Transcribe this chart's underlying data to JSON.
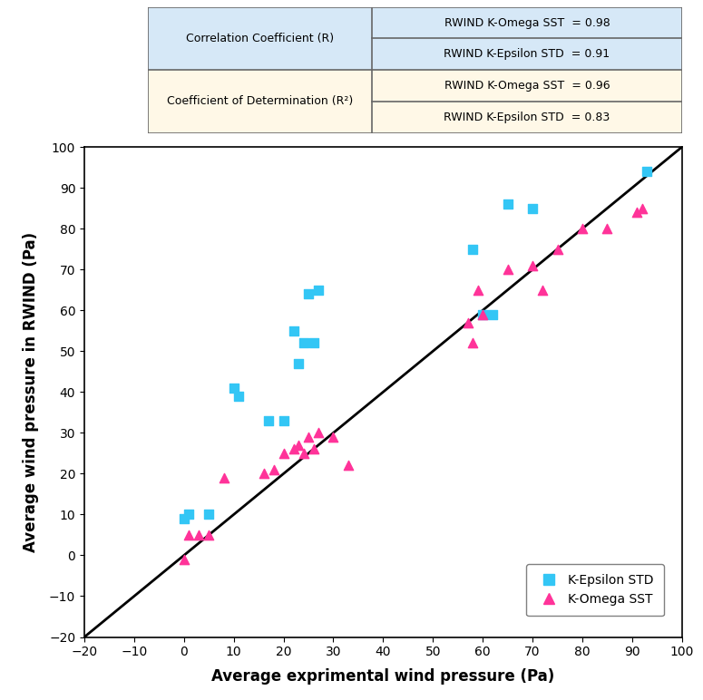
{
  "k_epsilon_x": [
    0,
    1,
    5,
    10,
    11,
    17,
    20,
    22,
    23,
    24,
    25,
    26,
    27,
    58,
    60,
    62,
    65,
    70,
    93
  ],
  "k_epsilon_y": [
    9,
    10,
    10,
    41,
    39,
    33,
    33,
    55,
    47,
    52,
    64,
    52,
    65,
    75,
    59,
    59,
    86,
    85,
    94
  ],
  "k_omega_x": [
    0,
    1,
    3,
    5,
    8,
    16,
    18,
    20,
    22,
    23,
    24,
    25,
    26,
    27,
    30,
    33,
    57,
    58,
    59,
    60,
    65,
    70,
    72,
    75,
    80,
    85,
    91,
    92
  ],
  "k_omega_y": [
    -1,
    5,
    5,
    5,
    19,
    20,
    21,
    25,
    26,
    27,
    25,
    29,
    26,
    30,
    29,
    22,
    57,
    52,
    65,
    59,
    70,
    71,
    65,
    75,
    80,
    80,
    84,
    85
  ],
  "line_x": [
    -20,
    100
  ],
  "line_y": [
    -20,
    100
  ],
  "xlim": [
    -20,
    100
  ],
  "ylim": [
    -20,
    100
  ],
  "xticks": [
    -20,
    -10,
    0,
    10,
    20,
    30,
    40,
    50,
    60,
    70,
    80,
    90,
    100
  ],
  "yticks": [
    -20,
    -10,
    0,
    10,
    20,
    30,
    40,
    50,
    60,
    70,
    80,
    90,
    100
  ],
  "xlabel": "Average exprimental wind pressure (Pa)",
  "ylabel": "Average wind pressure in RWIND (Pa)",
  "k_epsilon_color": "#33C6F5",
  "k_omega_color": "#FF3399",
  "table_border_color": "#666666",
  "table_left_bg_top": "#D6E8F7",
  "table_left_bg_bot": "#FFF8E7",
  "table_right_bg_top": "#D6E8F7",
  "table_right_bg_bot": "#FFF8E7",
  "corr_r_label": "Correlation Coefficient (R)",
  "coeff_det_label": "Coefficient of Determination (R²)",
  "rwind_komega_r": "RWIND K-Omega SST  = 0.98",
  "rwind_kepsilon_r": "RWIND K-Epsilon STD  = 0.91",
  "rwind_komega_r2": "RWIND K-Omega SST  = 0.96",
  "rwind_kepsilon_r2": "RWIND K-Epsilon STD  = 0.83",
  "legend_square_label": "K-Epsilon STD",
  "legend_triangle_label": "K-Omega SST"
}
